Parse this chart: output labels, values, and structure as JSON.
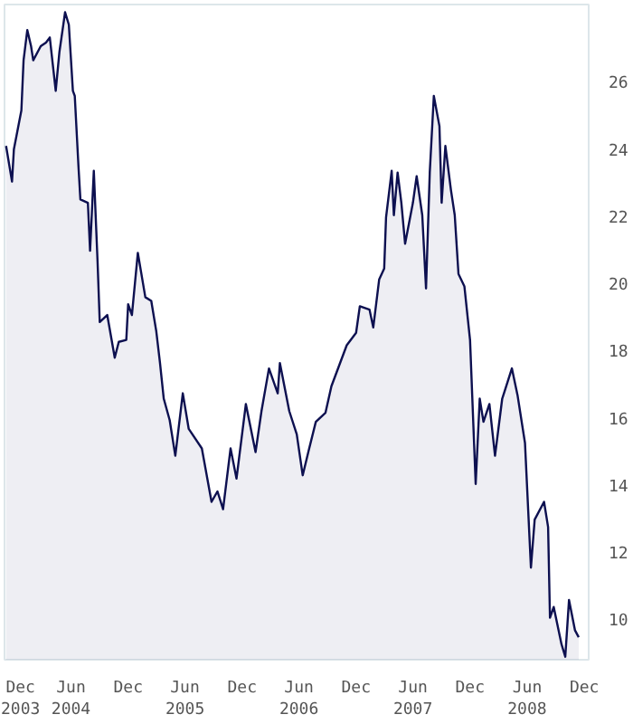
{
  "chart_data": {
    "type": "area",
    "x": [
      "2003-11-06",
      "2003-11-25",
      "2003-12-01",
      "2003-12-25",
      "2004-01-01",
      "2004-01-13",
      "2004-01-25",
      "2004-02-01",
      "2004-02-25",
      "2004-03-13",
      "2004-03-25",
      "2004-04-13",
      "2004-04-25",
      "2004-05-13",
      "2004-05-25",
      "2004-06-07",
      "2004-06-13",
      "2004-06-25",
      "2004-07-01",
      "2004-07-25",
      "2004-08-01",
      "2004-08-13",
      "2004-08-25",
      "2004-09-01",
      "2004-09-25",
      "2004-10-19",
      "2004-11-01",
      "2004-11-25",
      "2004-12-01",
      "2004-12-13",
      "2005-01-01",
      "2005-01-25",
      "2005-02-13",
      "2005-03-01",
      "2005-03-13",
      "2005-03-25",
      "2005-04-13",
      "2005-05-01",
      "2005-05-25",
      "2005-06-13",
      "2005-07-25",
      "2005-08-25",
      "2005-09-13",
      "2005-10-01",
      "2005-10-25",
      "2005-11-13",
      "2005-12-13",
      "2006-01-13",
      "2006-02-01",
      "2006-02-25",
      "2006-03-25",
      "2006-04-01",
      "2006-05-01",
      "2006-05-25",
      "2006-06-13",
      "2006-07-01",
      "2006-07-25",
      "2006-08-25",
      "2006-09-13",
      "2006-11-01",
      "2006-12-01",
      "2006-12-13",
      "2007-01-13",
      "2007-01-25",
      "2007-02-13",
      "2007-03-01",
      "2007-03-07",
      "2007-03-25",
      "2007-04-01",
      "2007-04-13",
      "2007-04-25",
      "2007-05-07",
      "2007-06-01",
      "2007-06-13",
      "2007-07-01",
      "2007-07-13",
      "2007-07-25",
      "2007-08-07",
      "2007-08-25",
      "2007-09-01",
      "2007-09-13",
      "2007-10-01",
      "2007-10-13",
      "2007-10-25",
      "2007-11-13",
      "2007-12-01",
      "2007-12-19",
      "2008-01-01",
      "2008-01-13",
      "2008-02-01",
      "2008-02-19",
      "2008-03-13",
      "2008-04-13",
      "2008-05-01",
      "2008-05-25",
      "2008-06-13",
      "2008-06-25",
      "2008-07-25",
      "2008-08-07",
      "2008-08-13",
      "2008-08-25",
      "2008-09-19",
      "2008-10-01",
      "2008-10-13",
      "2008-11-01",
      "2008-11-13"
    ],
    "series": [
      {
        "color": "#0d1050",
        "values": [
          24.09,
          23.03,
          23.99,
          25.15,
          26.64,
          27.54,
          27.06,
          26.64,
          27.06,
          27.17,
          27.32,
          25.73,
          26.9,
          28.07,
          27.7,
          25.73,
          25.58,
          23.46,
          22.5,
          22.4,
          20.97,
          23.35,
          20.65,
          18.85,
          19.06,
          17.79,
          18.26,
          18.32,
          19.38,
          19.06,
          20.91,
          19.59,
          19.48,
          18.58,
          17.63,
          16.57,
          15.93,
          14.87,
          16.73,
          15.67,
          15.09,
          13.5,
          13.81,
          13.28,
          15.09,
          14.19,
          16.41,
          14.98,
          16.2,
          17.47,
          16.73,
          17.63,
          16.2,
          15.51,
          14.29,
          14.98,
          15.88,
          16.15,
          16.94,
          18.16,
          18.53,
          19.32,
          19.22,
          18.69,
          20.12,
          20.44,
          21.97,
          23.35,
          22.03,
          23.3,
          22.4,
          21.18,
          22.4,
          23.19,
          22.03,
          19.85,
          23.3,
          25.58,
          24.68,
          22.4,
          24.09,
          22.77,
          22.03,
          20.28,
          19.91,
          18.32,
          14.03,
          16.57,
          15.88,
          16.41,
          14.87,
          16.57,
          17.47,
          16.68,
          15.25,
          11.54,
          12.97,
          13.5,
          12.75,
          10.05,
          10.37,
          9.26,
          8.89,
          10.58,
          9.68,
          9.47
        ]
      }
    ],
    "xlim": [
      "2003-11-01",
      "2008-12-15"
    ],
    "xticks": [
      {
        "value": "2003-12-01",
        "label": "Dec\n2003"
      },
      {
        "value": "2004-06-01",
        "label": "Jun\n2004"
      },
      {
        "value": "2004-12-01",
        "label": "Dec"
      },
      {
        "value": "2005-06-01",
        "label": "Jun\n2005"
      },
      {
        "value": "2005-12-01",
        "label": "Dec"
      },
      {
        "value": "2006-06-01",
        "label": "Jun\n2006"
      },
      {
        "value": "2006-12-01",
        "label": "Dec"
      },
      {
        "value": "2007-06-01",
        "label": "Jun\n2007"
      },
      {
        "value": "2007-12-01",
        "label": "Dec"
      },
      {
        "value": "2008-06-01",
        "label": "Jun\n2008"
      },
      {
        "value": "2008-12-01",
        "label": "Dec"
      }
    ],
    "ylim": [
      8.8,
      28.3
    ],
    "yticks": [
      10,
      12,
      14,
      16,
      18,
      20,
      22,
      24,
      26
    ],
    "grid": false
  }
}
